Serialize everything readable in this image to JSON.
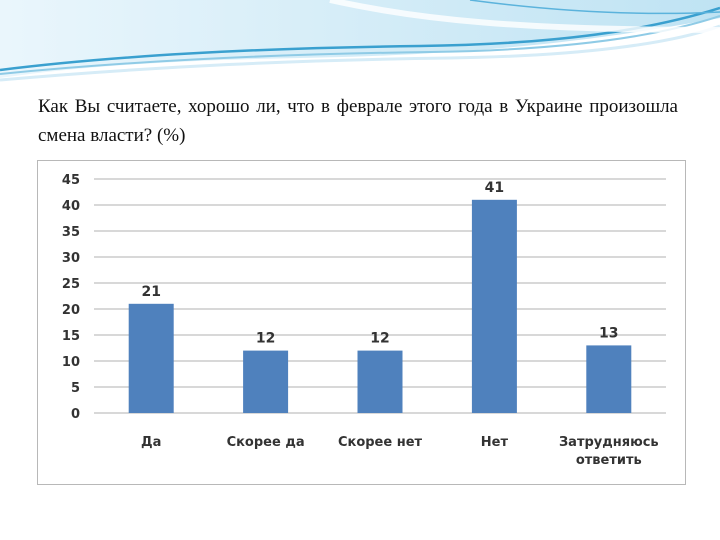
{
  "slide": {
    "question": "Как Вы считаете, хорошо ли, что в феврале этого года в Украине произошла смена власти? (%)"
  },
  "colors": {
    "bar": "#4F81BD",
    "grid": "#b0b0b0",
    "header_light": "#d6ecf7",
    "header_mid": "#8fcbe6",
    "header_dark": "#3aa0cf"
  },
  "chart_data": {
    "type": "bar",
    "title": "",
    "xlabel": "",
    "ylabel": "",
    "categories": [
      [
        "Да"
      ],
      [
        "Скорее да"
      ],
      [
        "Скорее нет"
      ],
      [
        "Нет"
      ],
      [
        "Затрудняюсь",
        "ответить"
      ]
    ],
    "values": [
      21,
      12,
      12,
      41,
      13
    ],
    "ylim": [
      0,
      45
    ],
    "yticks": [
      0,
      5,
      10,
      15,
      20,
      25,
      30,
      35,
      40,
      45
    ],
    "grid": true,
    "legend": false
  }
}
